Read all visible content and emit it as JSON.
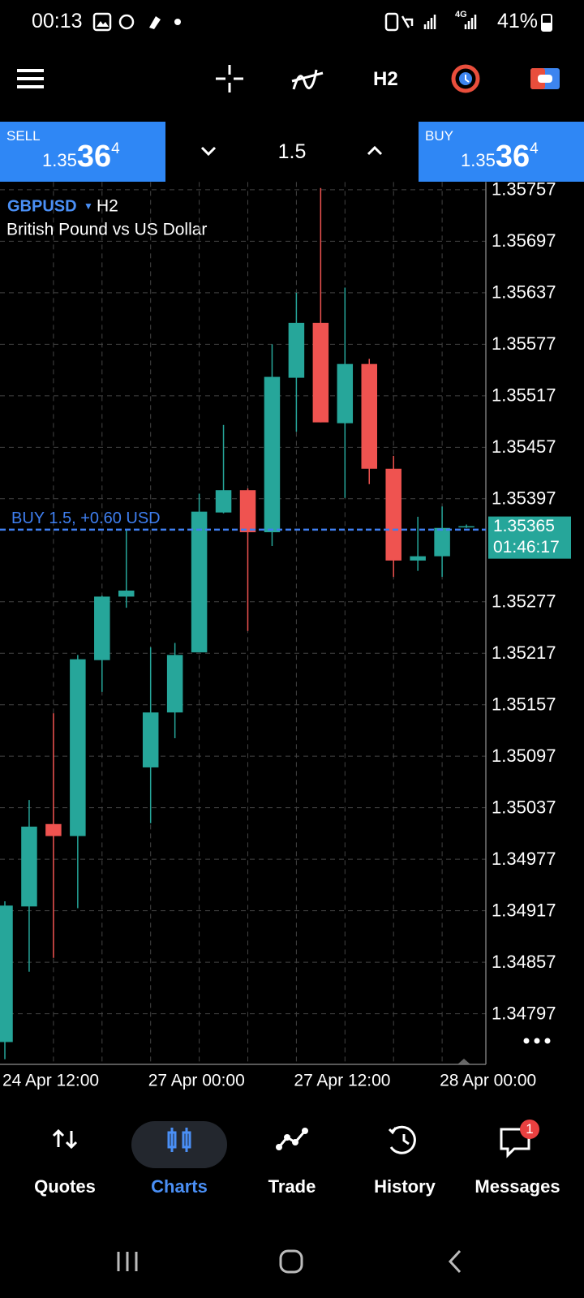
{
  "status_bar": {
    "time": "00:13",
    "network": "4G",
    "battery": "41%"
  },
  "toolbar": {
    "timeframe": "H2"
  },
  "trade_panel": {
    "sell": {
      "label": "SELL",
      "price_prefix": "1.35",
      "price_main": "36",
      "price_suffix": "4"
    },
    "volume": "1.5",
    "buy": {
      "label": "BUY",
      "price_prefix": "1.35",
      "price_main": "36",
      "price_suffix": "4"
    }
  },
  "chart_data": {
    "type": "candlestick",
    "symbol": "GBPUSD",
    "timeframe": "H2",
    "description": "British Pound vs US Dollar",
    "categories": [
      "24 Apr 12:00",
      null,
      null,
      null,
      null,
      null,
      "27 Apr 00:00",
      null,
      null,
      null,
      null,
      null,
      "27 Apr 12:00",
      null,
      null,
      null,
      null,
      null,
      "28 Apr 00:00",
      null
    ],
    "open": [
      1.34764,
      1.34922,
      1.35018,
      1.35004,
      1.35209,
      1.35283,
      1.35084,
      1.35148,
      1.35218,
      1.35381,
      1.35407,
      1.35358,
      1.35538,
      1.35602,
      1.35485,
      1.35554,
      1.35432,
      1.35325,
      1.3533,
      1.35365
    ],
    "high": [
      1.34928,
      1.35046,
      1.35147,
      1.35215,
      1.35284,
      1.35361,
      1.35224,
      1.35229,
      1.35403,
      1.35483,
      1.35409,
      1.35577,
      1.35637,
      1.35759,
      1.35643,
      1.3556,
      1.35447,
      1.35376,
      1.35388,
      1.35367
    ],
    "low": [
      1.34744,
      1.34846,
      1.34862,
      1.3492,
      1.35172,
      1.3527,
      1.35019,
      1.35118,
      1.35218,
      1.3538,
      1.35243,
      1.35342,
      1.35475,
      1.35486,
      1.35398,
      1.35414,
      1.35306,
      1.35313,
      1.35306,
      1.35363
    ],
    "close": [
      1.34923,
      1.35015,
      1.35004,
      1.3521,
      1.35283,
      1.3529,
      1.35148,
      1.35215,
      1.35382,
      1.35407,
      1.35358,
      1.35539,
      1.35602,
      1.35486,
      1.35554,
      1.35432,
      1.35325,
      1.3533,
      1.35363,
      1.35365
    ],
    "up_color": "#26a69a",
    "down_color": "#ef5350",
    "ylim": [
      1.34738,
      1.35766
    ],
    "yticks": [
      1.35757,
      1.35697,
      1.35637,
      1.35577,
      1.35517,
      1.35457,
      1.35397,
      1.35277,
      1.35217,
      1.35157,
      1.35097,
      1.35037,
      1.34977,
      1.34917,
      1.34857,
      1.34797
    ],
    "grid": true,
    "position": {
      "label": "BUY 1.5,  +0.60 USD",
      "price": 1.35361,
      "color": "#3f7ff0"
    },
    "current_price": {
      "value": 1.35365,
      "countdown": "01:46:17",
      "color": "#26a69a"
    }
  },
  "nav": {
    "items": [
      "Quotes",
      "Charts",
      "Trade",
      "History",
      "Messages"
    ],
    "active": "Charts",
    "messages_badge": "1"
  }
}
